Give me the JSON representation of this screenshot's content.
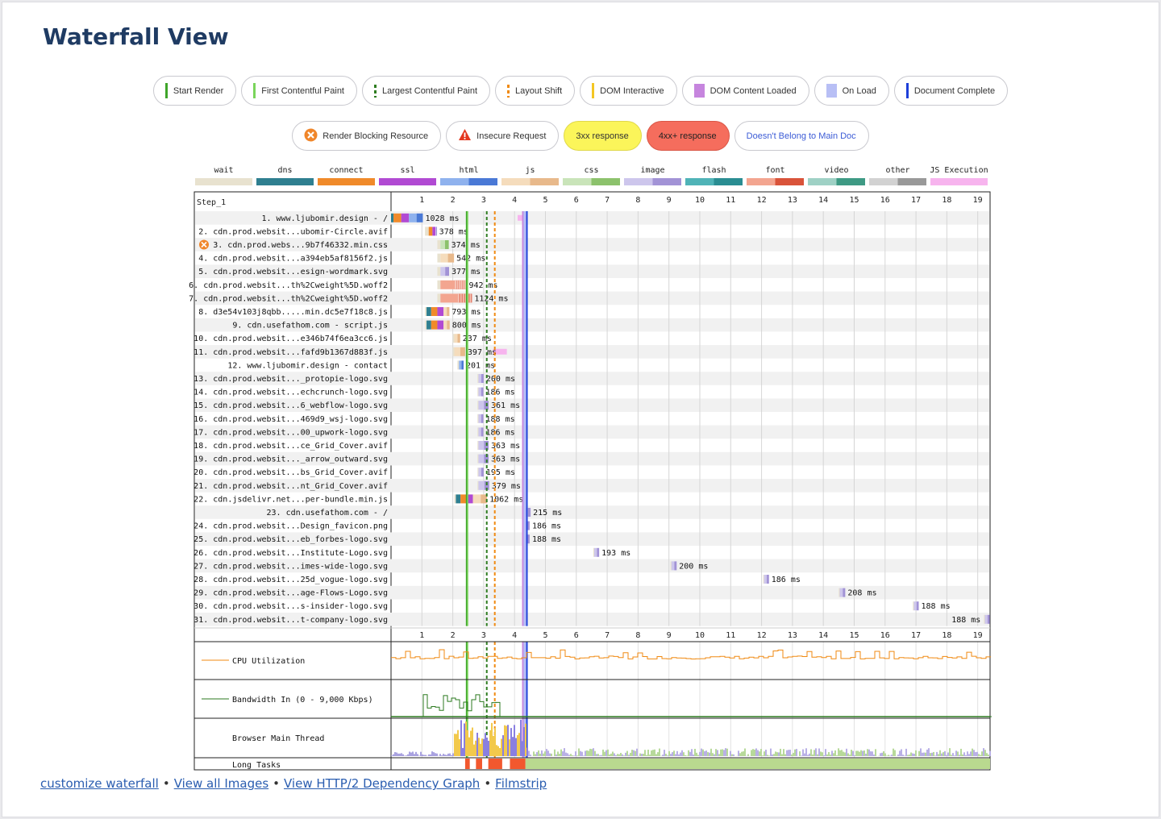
{
  "title": "Waterfall View",
  "colors": {
    "start_render": "#3fa52a",
    "fcp": "#7ad55b",
    "lcp": "#2f7d21",
    "layout_shift": "#f08a12",
    "dom_interactive": "#f3c623",
    "dom_content_loaded": "#c685de",
    "on_load": "#b8bff5",
    "document_complete": "#1d3fd9"
  },
  "legend_milestones": [
    {
      "label": "Start Render",
      "color": "#3fa52a",
      "style": "line"
    },
    {
      "label": "First Contentful Paint",
      "color": "#7ad55b",
      "style": "line"
    },
    {
      "label": "Largest Contentful Paint",
      "color": "#2f7d21",
      "style": "dash"
    },
    {
      "label": "Layout Shift",
      "color": "#f08a12",
      "style": "dash"
    },
    {
      "label": "DOM Interactive",
      "color": "#f3c623",
      "style": "line"
    },
    {
      "label": "DOM Content Loaded",
      "color": "#c685de",
      "style": "box"
    },
    {
      "label": "On Load",
      "color": "#b8bff5",
      "style": "box"
    },
    {
      "label": "Document Complete",
      "color": "#1d3fd9",
      "style": "line"
    }
  ],
  "legend_flags": [
    {
      "label": "Render Blocking Resource",
      "icon": "blocking-icon",
      "kind": "plain"
    },
    {
      "label": "Insecure Request",
      "icon": "warning-icon",
      "kind": "plain"
    },
    {
      "label": "3xx response",
      "kind": "yellow"
    },
    {
      "label": "4xx+ response",
      "kind": "red"
    },
    {
      "label": "Doesn't Belong to Main Doc",
      "kind": "link"
    }
  ],
  "type_legend": [
    {
      "label": "wait",
      "color": "#e8e2cf"
    },
    {
      "label": "dns",
      "color": "#2f7f90"
    },
    {
      "label": "connect",
      "color": "#f08a2a"
    },
    {
      "label": "ssl",
      "color": "#b14ad3"
    },
    {
      "label": "html",
      "color": "#8fb2ee",
      "dark": "#4a79d6"
    },
    {
      "label": "js",
      "color": "#f5dcbc",
      "dark": "#e8b98b"
    },
    {
      "label": "css",
      "color": "#c9e4b9",
      "dark": "#8cc26c"
    },
    {
      "label": "image",
      "color": "#cdc6ec",
      "dark": "#a293d6"
    },
    {
      "label": "flash",
      "color": "#4fb3b7",
      "dark": "#2a8d92"
    },
    {
      "label": "font",
      "color": "#f3a590",
      "dark": "#d9533a"
    },
    {
      "label": "video",
      "color": "#9fd1c5",
      "dark": "#3e9a84"
    },
    {
      "label": "other",
      "color": "#d2d2d2",
      "dark": "#999999"
    },
    {
      "label": "JS Execution",
      "color": "#f7b4ee"
    }
  ],
  "waterfall": {
    "step_label": "Step_1",
    "time_ticks": [
      1,
      2,
      3,
      4,
      5,
      6,
      7,
      8,
      9,
      10,
      11,
      12,
      13,
      14,
      15,
      16,
      17,
      18,
      19
    ],
    "time_max_s": 19.4,
    "markers_s": {
      "start_render": 2.45,
      "fcp": 2.48,
      "lcp": 3.1,
      "layout_shift": 3.36,
      "dom_content_loaded": 4.27,
      "on_load": 4.33,
      "document_complete": 4.4
    },
    "requests": [
      {
        "label": "1. www.ljubomir.design - /",
        "type": "html",
        "start": 0.0,
        "dns": 0.08,
        "connect": 0.25,
        "ssl": 0.25,
        "wait": 0.0,
        "dur": 1.03,
        "time_label": "1028 ms",
        "exec": [
          4.1,
          4.4
        ]
      },
      {
        "label": "2. cdn.prod.websit...ubomir-Circle.avif",
        "type": "image",
        "start": 1.1,
        "dns": 0.0,
        "connect": 0.12,
        "ssl": 0.1,
        "wait": 0.12,
        "dur": 0.38,
        "time_label": "378 ms"
      },
      {
        "label": "3. cdn.prod.webs...9b7f46332.min.css",
        "type": "css",
        "start": 1.5,
        "dns": 0.0,
        "connect": 0.0,
        "ssl": 0.0,
        "wait": 0.1,
        "dur": 0.37,
        "time_label": "374 ms",
        "blocking": true
      },
      {
        "label": "4. cdn.prod.websit...a394eb5af8156f2.js",
        "type": "js",
        "start": 1.5,
        "dns": 0.0,
        "connect": 0.0,
        "ssl": 0.0,
        "wait": 0.1,
        "dur": 0.54,
        "time_label": "542 ms"
      },
      {
        "label": "5. cdn.prod.websit...esign-wordmark.svg",
        "type": "image",
        "start": 1.5,
        "dns": 0.0,
        "connect": 0.0,
        "ssl": 0.0,
        "wait": 0.1,
        "dur": 0.38,
        "time_label": "377 ms"
      },
      {
        "label": "6. cdn.prod.websit...th%2Cweight%5D.woff2",
        "type": "font",
        "start": 1.5,
        "dns": 0.0,
        "connect": 0.0,
        "ssl": 0.0,
        "wait": 0.1,
        "dur": 0.94,
        "time_label": "942 ms"
      },
      {
        "label": "7. cdn.prod.websit...th%2Cweight%5D.woff2",
        "type": "font",
        "start": 1.5,
        "dns": 0.0,
        "connect": 0.0,
        "ssl": 0.0,
        "wait": 0.1,
        "dur": 1.12,
        "time_label": "1124 ms"
      },
      {
        "label": "8. d3e54v103j8qbb.....min.dc5e7f18c8.js",
        "type": "js",
        "start": 1.1,
        "dns": 0.15,
        "connect": 0.2,
        "ssl": 0.2,
        "wait": 0.05,
        "dur": 0.79,
        "time_label": "793 ms"
      },
      {
        "label": "9. cdn.usefathom.com - script.js",
        "type": "js",
        "start": 1.1,
        "dns": 0.15,
        "connect": 0.2,
        "ssl": 0.2,
        "wait": 0.05,
        "dur": 0.8,
        "time_label": "800 ms"
      },
      {
        "label": "10. cdn.prod.websit...e346b74f6ea3cc6.js",
        "type": "js",
        "start": 2.0,
        "dns": 0.0,
        "connect": 0.0,
        "ssl": 0.0,
        "wait": 0.05,
        "dur": 0.24,
        "time_label": "237 ms"
      },
      {
        "label": "11. cdn.prod.websit...fafd9b1367d883f.js",
        "type": "js",
        "start": 2.0,
        "dns": 0.0,
        "connect": 0.0,
        "ssl": 0.0,
        "wait": 0.05,
        "dur": 0.4,
        "time_label": "397 ms",
        "exec": [
          3.3,
          3.75
        ]
      },
      {
        "label": "12. www.ljubomir.design - contact",
        "type": "html",
        "start": 2.15,
        "dns": 0.0,
        "connect": 0.0,
        "ssl": 0.0,
        "wait": 0.05,
        "dur": 0.2,
        "time_label": "201 ms"
      },
      {
        "label": "13. cdn.prod.websit..._protopie-logo.svg",
        "type": "image",
        "start": 2.8,
        "dns": 0.0,
        "connect": 0.0,
        "ssl": 0.0,
        "wait": 0.03,
        "dur": 0.2,
        "time_label": "200 ms"
      },
      {
        "label": "14. cdn.prod.websit...echcrunch-logo.svg",
        "type": "image",
        "start": 2.8,
        "dns": 0.0,
        "connect": 0.0,
        "ssl": 0.0,
        "wait": 0.03,
        "dur": 0.19,
        "time_label": "186 ms"
      },
      {
        "label": "15. cdn.prod.websit...6_webflow-logo.svg",
        "type": "image",
        "start": 2.8,
        "dns": 0.0,
        "connect": 0.0,
        "ssl": 0.0,
        "wait": 0.03,
        "dur": 0.36,
        "time_label": "361 ms"
      },
      {
        "label": "16. cdn.prod.websit...469d9_wsj-logo.svg",
        "type": "image",
        "start": 2.8,
        "dns": 0.0,
        "connect": 0.0,
        "ssl": 0.0,
        "wait": 0.03,
        "dur": 0.19,
        "time_label": "188 ms"
      },
      {
        "label": "17. cdn.prod.websit...00_upwork-logo.svg",
        "type": "image",
        "start": 2.8,
        "dns": 0.0,
        "connect": 0.0,
        "ssl": 0.0,
        "wait": 0.03,
        "dur": 0.19,
        "time_label": "186 ms"
      },
      {
        "label": "18. cdn.prod.websit...ce_Grid_Cover.avif",
        "type": "image",
        "start": 2.8,
        "dns": 0.0,
        "connect": 0.0,
        "ssl": 0.0,
        "wait": 0.03,
        "dur": 0.36,
        "time_label": "363 ms"
      },
      {
        "label": "19. cdn.prod.websit..._arrow_outward.svg",
        "type": "image",
        "start": 2.8,
        "dns": 0.0,
        "connect": 0.0,
        "ssl": 0.0,
        "wait": 0.03,
        "dur": 0.36,
        "time_label": "363 ms"
      },
      {
        "label": "20. cdn.prod.websit...bs_Grid_Cover.avif",
        "type": "image",
        "start": 2.8,
        "dns": 0.0,
        "connect": 0.0,
        "ssl": 0.0,
        "wait": 0.03,
        "dur": 0.2,
        "time_label": "195 ms"
      },
      {
        "label": "21. cdn.prod.websit...nt_Grid_Cover.avif",
        "type": "image",
        "start": 2.8,
        "dns": 0.0,
        "connect": 0.0,
        "ssl": 0.0,
        "wait": 0.03,
        "dur": 0.38,
        "time_label": "379 ms"
      },
      {
        "label": "22. cdn.jsdelivr.net...per-bundle.min.js",
        "type": "js",
        "start": 2.05,
        "dns": 0.15,
        "connect": 0.2,
        "ssl": 0.2,
        "wait": 0.05,
        "dur": 1.06,
        "time_label": "1062 ms"
      },
      {
        "label": "23. cdn.usefathom.com - /",
        "type": "image",
        "start": 4.3,
        "dns": 0.0,
        "connect": 0.0,
        "ssl": 0.0,
        "wait": 0.03,
        "dur": 0.22,
        "time_label": "215 ms"
      },
      {
        "label": "24. cdn.prod.websit...Design_favicon.png",
        "type": "image",
        "start": 4.3,
        "dns": 0.0,
        "connect": 0.0,
        "ssl": 0.0,
        "wait": 0.03,
        "dur": 0.19,
        "time_label": "186 ms"
      },
      {
        "label": "25. cdn.prod.websit...eb_forbes-logo.svg",
        "type": "image",
        "start": 4.3,
        "dns": 0.0,
        "connect": 0.0,
        "ssl": 0.0,
        "wait": 0.03,
        "dur": 0.19,
        "time_label": "188 ms"
      },
      {
        "label": "26. cdn.prod.websit...Institute-Logo.svg",
        "type": "image",
        "start": 6.55,
        "dns": 0.0,
        "connect": 0.0,
        "ssl": 0.0,
        "wait": 0.03,
        "dur": 0.19,
        "time_label": "193 ms"
      },
      {
        "label": "27. cdn.prod.websit...imes-wide-logo.svg",
        "type": "image",
        "start": 9.05,
        "dns": 0.0,
        "connect": 0.0,
        "ssl": 0.0,
        "wait": 0.03,
        "dur": 0.2,
        "time_label": "200 ms"
      },
      {
        "label": "28. cdn.prod.websit...25d_vogue-logo.svg",
        "type": "image",
        "start": 12.05,
        "dns": 0.0,
        "connect": 0.0,
        "ssl": 0.0,
        "wait": 0.03,
        "dur": 0.19,
        "time_label": "186 ms"
      },
      {
        "label": "29. cdn.prod.websit...age-Flows-Logo.svg",
        "type": "image",
        "start": 14.5,
        "dns": 0.0,
        "connect": 0.0,
        "ssl": 0.0,
        "wait": 0.03,
        "dur": 0.21,
        "time_label": "208 ms"
      },
      {
        "label": "30. cdn.prod.websit...s-insider-logo.svg",
        "type": "image",
        "start": 16.9,
        "dns": 0.0,
        "connect": 0.0,
        "ssl": 0.0,
        "wait": 0.03,
        "dur": 0.19,
        "time_label": "188 ms"
      },
      {
        "label": "31. cdn.prod.websit...t-company-logo.svg",
        "type": "image",
        "start": 19.2,
        "dns": 0.0,
        "connect": 0.0,
        "ssl": 0.0,
        "wait": 0.03,
        "dur": 0.19,
        "time_label": "188 ms",
        "label_before": true
      }
    ],
    "panels": {
      "cpu_label": "CPU Utilization",
      "bandwidth_label": "Bandwidth In (0 - 9,000 Kbps)",
      "main_thread_label": "Browser Main Thread",
      "long_tasks_label": "Long Tasks"
    },
    "long_tasks_s": [
      [
        2.4,
        2.55
      ],
      [
        2.75,
        2.95
      ],
      [
        3.15,
        3.6
      ],
      [
        3.85,
        4.35
      ]
    ]
  },
  "footer_links": [
    {
      "label": "customize waterfall"
    },
    {
      "label": "View all Images"
    },
    {
      "label": "View HTTP/2 Dependency Graph"
    },
    {
      "label": "Filmstrip"
    }
  ]
}
